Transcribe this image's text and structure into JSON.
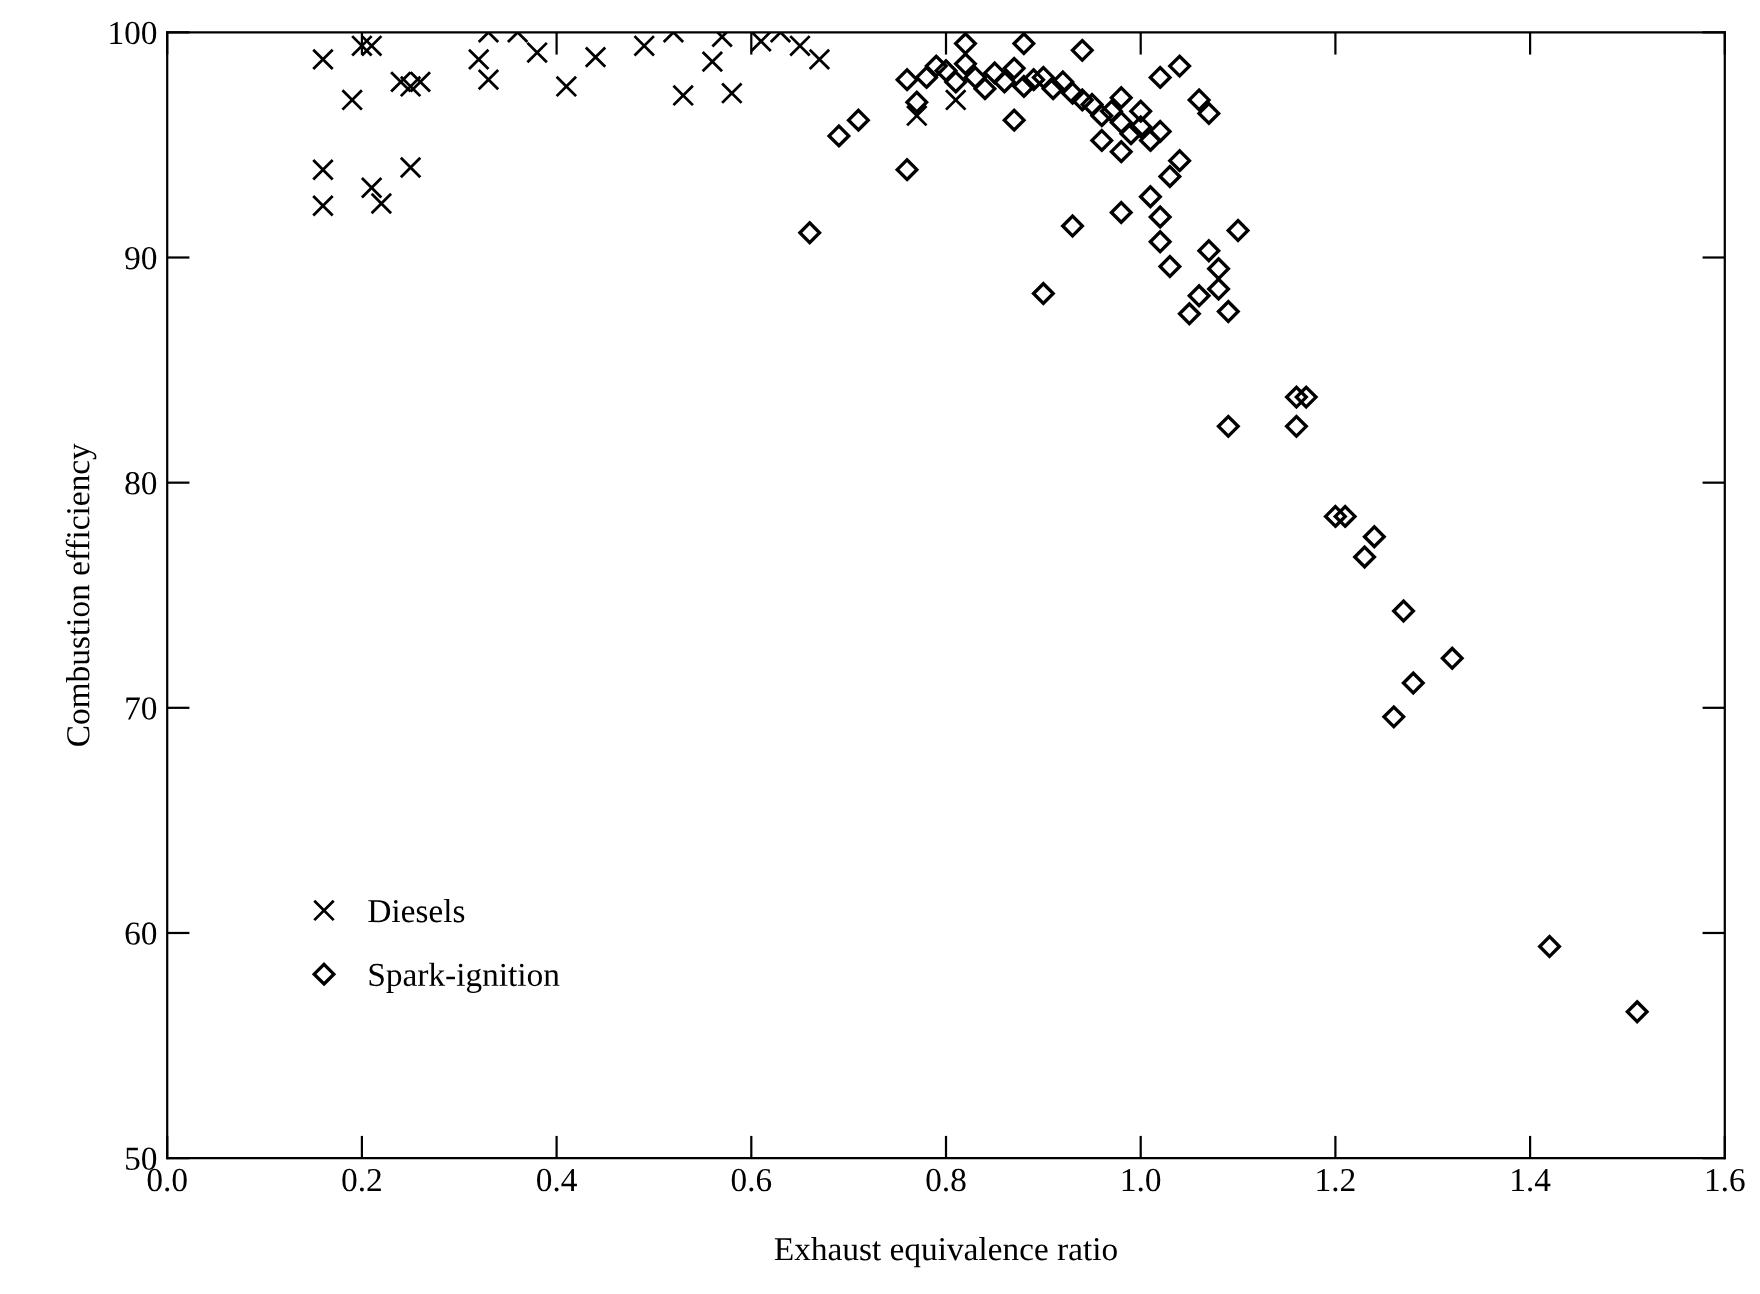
{
  "chart_data": {
    "type": "scatter",
    "xlabel": "Exhaust equivalence ratio",
    "ylabel": "Combustion efficiency",
    "xlim": [
      0.0,
      1.6
    ],
    "xticks": [
      "0.0",
      0.2,
      0.4,
      0.6,
      0.8,
      "1.0",
      1.2,
      1.4,
      1.6
    ],
    "ylim": [
      50,
      100
    ],
    "yticks": [
      50,
      60,
      70,
      80,
      90,
      100
    ],
    "grid": false,
    "legend": "lower left",
    "series": [
      {
        "name": "Diesels",
        "color": "#000000",
        "marker": "cross",
        "x": [
          0.16,
          0.2,
          0.21,
          0.19,
          0.24,
          0.25,
          0.26,
          0.32,
          0.33,
          0.33,
          0.36,
          0.38,
          0.41,
          0.44,
          0.49,
          0.52,
          0.53,
          0.57,
          0.56,
          0.58,
          0.16,
          0.16,
          0.21,
          0.22,
          0.25,
          0.61,
          0.63,
          0.65,
          0.67,
          0.77,
          0.81
        ],
        "values": [
          98.8,
          99.4,
          99.4,
          97.0,
          97.8,
          97.6,
          97.8,
          98.8,
          100,
          97.9,
          100,
          99.1,
          97.6,
          98.9,
          99.4,
          100,
          97.2,
          99.8,
          98.7,
          97.3,
          93.9,
          92.3,
          93.1,
          92.4,
          94.0,
          99.6,
          100,
          99.4,
          98.8,
          96.3,
          97.0
        ]
      },
      {
        "name": "Spark-ignition",
        "color": "#000000",
        "marker": "diamond",
        "x": [
          0.76,
          0.77,
          0.69,
          0.71,
          0.76,
          0.66,
          0.82,
          0.88,
          0.94,
          0.87,
          0.93,
          1.02,
          1.04,
          1.06,
          1.07,
          0.96,
          0.98,
          1.04,
          1.03,
          1.01,
          0.98,
          1.02,
          1.1,
          1.02,
          1.07,
          0.78,
          0.79,
          0.8,
          0.81,
          0.82,
          0.83,
          0.84,
          0.85,
          0.86,
          0.87,
          0.88,
          0.89,
          0.9,
          0.91,
          0.92,
          0.93,
          0.94,
          0.95,
          0.96,
          0.97,
          0.98,
          0.99,
          1.0,
          1.01,
          1.02,
          1.0,
          0.98,
          0.9,
          1.03,
          1.08,
          1.05,
          1.06,
          1.08,
          1.09,
          1.16,
          1.17,
          1.09,
          1.16,
          1.2,
          1.21,
          1.24,
          1.23,
          1.27,
          1.32,
          1.28,
          1.26,
          1.42,
          1.51
        ],
        "values": [
          97.9,
          96.9,
          95.4,
          96.1,
          93.9,
          91.1,
          99.5,
          99.5,
          99.2,
          96.1,
          91.4,
          98.0,
          98.5,
          97.0,
          96.4,
          95.2,
          94.7,
          94.3,
          93.6,
          92.7,
          92.0,
          91.8,
          91.2,
          90.7,
          90.3,
          98.0,
          98.5,
          98.3,
          97.8,
          98.6,
          98.0,
          97.5,
          98.2,
          97.8,
          98.4,
          97.6,
          97.9,
          98.0,
          97.5,
          97.8,
          97.3,
          97.0,
          96.8,
          96.3,
          96.5,
          96.0,
          95.5,
          95.8,
          95.2,
          95.6,
          96.5,
          97.1,
          88.4,
          89.6,
          88.6,
          87.5,
          88.3,
          89.5,
          87.6,
          83.8,
          83.8,
          82.5,
          82.5,
          78.5,
          78.5,
          77.6,
          76.7,
          74.3,
          72.2,
          71.1,
          69.6,
          59.4,
          56.5
        ]
      }
    ]
  }
}
